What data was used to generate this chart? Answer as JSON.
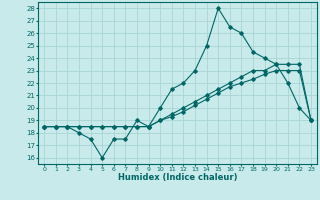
{
  "xlabel": "Humidex (Indice chaleur)",
  "bg_color": "#c8eaea",
  "grid_color": "#aad4d4",
  "line_color": "#006666",
  "xlim": [
    -0.5,
    23.5
  ],
  "ylim": [
    15.5,
    28.5
  ],
  "yticks": [
    16,
    17,
    18,
    19,
    20,
    21,
    22,
    23,
    24,
    25,
    26,
    27,
    28
  ],
  "xticks": [
    0,
    1,
    2,
    3,
    4,
    5,
    6,
    7,
    8,
    9,
    10,
    11,
    12,
    13,
    14,
    15,
    16,
    17,
    18,
    19,
    20,
    21,
    22,
    23
  ],
  "line1_y": [
    18.5,
    18.5,
    18.5,
    18.0,
    17.5,
    16.0,
    17.5,
    17.5,
    19.0,
    18.5,
    20.0,
    21.5,
    22.0,
    23.0,
    25.0,
    28.0,
    26.5,
    26.0,
    24.5,
    24.0,
    23.5,
    22.0,
    20.0,
    19.0
  ],
  "line2_y": [
    18.5,
    18.5,
    18.5,
    18.5,
    18.5,
    18.5,
    18.5,
    18.5,
    18.5,
    18.5,
    19.0,
    19.5,
    20.0,
    20.5,
    21.0,
    21.5,
    22.0,
    22.5,
    23.0,
    23.0,
    23.5,
    23.5,
    23.5,
    19.0
  ],
  "line3_y": [
    18.5,
    18.5,
    18.5,
    18.5,
    18.5,
    18.5,
    18.5,
    18.5,
    18.5,
    18.5,
    19.0,
    19.3,
    19.7,
    20.2,
    20.7,
    21.2,
    21.7,
    22.0,
    22.3,
    22.7,
    23.0,
    23.0,
    23.0,
    19.0
  ]
}
